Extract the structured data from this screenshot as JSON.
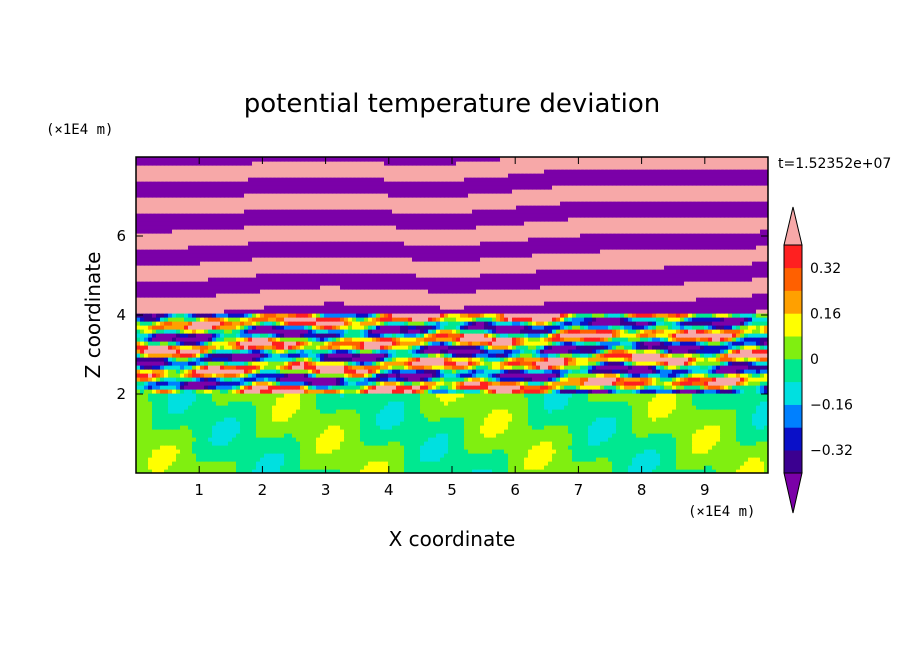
{
  "chart_data": {
    "type": "heatmap",
    "title": "potential temperature deviation",
    "xlabel": "X coordinate",
    "ylabel": "Z coordinate",
    "x_unit": "(×1E4 m)",
    "y_unit": "(×1E4 m)",
    "time_label": "t=1.52352e+07",
    "xlim": [
      0,
      10
    ],
    "ylim": [
      0,
      8
    ],
    "x_ticks": [
      1,
      2,
      3,
      4,
      5,
      6,
      7,
      8,
      9
    ],
    "y_ticks": [
      2,
      4,
      6
    ],
    "colorbar": {
      "levels": [
        -0.4,
        -0.32,
        -0.24,
        -0.16,
        -0.08,
        0,
        0.08,
        0.16,
        0.24,
        0.32,
        0.4
      ],
      "labels": [
        "0.32",
        "0.16",
        "0",
        "−0.16",
        "−0.32"
      ],
      "label_values": [
        0.32,
        0.16,
        0,
        -0.16,
        -0.32
      ],
      "colors": [
        "#7b00a8",
        "#3b0090",
        "#0a10c8",
        "#0080ff",
        "#00e0e0",
        "#00e890",
        "#80ef10",
        "#ffff00",
        "#ffa000",
        "#ff6000",
        "#ff2020",
        "#f7a8a8"
      ],
      "extend": "both"
    },
    "layers": [
      {
        "z_range": [
          0,
          2
        ],
        "pattern": "near-zero, mostly green / light green"
      },
      {
        "z_range": [
          2,
          4
        ],
        "pattern": "mixed, strong positive and negative bands"
      },
      {
        "z_range": [
          4,
          8
        ],
        "pattern": "alternating purple and pink bands"
      }
    ]
  }
}
